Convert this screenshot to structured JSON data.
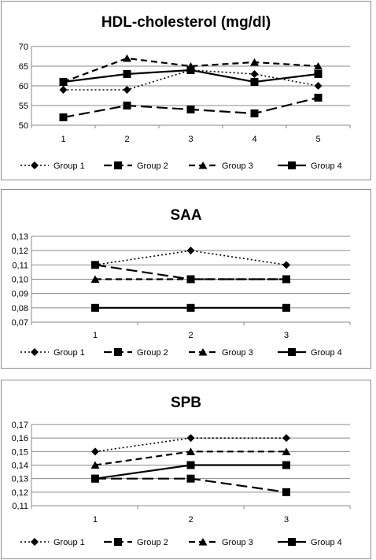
{
  "chart_data": [
    {
      "type": "line",
      "title": "HDL-cholesterol (mg/dl)",
      "categories": [
        "1",
        "2",
        "3",
        "4",
        "5"
      ],
      "ylim": [
        50,
        70
      ],
      "yticks": [
        "50",
        "55",
        "60",
        "65",
        "70"
      ],
      "ytick_values": [
        50,
        55,
        60,
        65,
        70
      ],
      "grid": true,
      "legend_position": "bottom",
      "series": [
        {
          "name": "Group 1",
          "style": "dotted",
          "marker": "diamond",
          "values": [
            59,
            59,
            64,
            63,
            60
          ]
        },
        {
          "name": "Group 2",
          "style": "long-dash",
          "marker": "square",
          "values": [
            52,
            55,
            54,
            53,
            57
          ]
        },
        {
          "name": "Group 3",
          "style": "dash",
          "marker": "triangle",
          "values": [
            61,
            67,
            65,
            66,
            65
          ]
        },
        {
          "name": "Group 4",
          "style": "solid",
          "marker": "square",
          "values": [
            61,
            63,
            64,
            61,
            63
          ]
        }
      ]
    },
    {
      "type": "line",
      "title": "SAA",
      "categories": [
        "1",
        "2",
        "3"
      ],
      "ylim": [
        0.07,
        0.13
      ],
      "yticks": [
        "0,07",
        "0,08",
        "0,09",
        "0,10",
        "0,11",
        "0,12",
        "0,13"
      ],
      "ytick_values": [
        0.07,
        0.08,
        0.09,
        0.1,
        0.11,
        0.12,
        0.13
      ],
      "grid": true,
      "legend_position": "bottom",
      "series": [
        {
          "name": "Group 1",
          "style": "dotted",
          "marker": "diamond",
          "values": [
            0.11,
            0.12,
            0.11
          ]
        },
        {
          "name": "Group 2",
          "style": "long-dash",
          "marker": "square",
          "values": [
            0.11,
            0.1,
            0.1
          ]
        },
        {
          "name": "Group 3",
          "style": "dash",
          "marker": "triangle",
          "values": [
            0.1,
            0.1,
            0.1
          ]
        },
        {
          "name": "Group 4",
          "style": "solid",
          "marker": "square",
          "values": [
            0.08,
            0.08,
            0.08
          ]
        }
      ]
    },
    {
      "type": "line",
      "title": "SPB",
      "categories": [
        "1",
        "2",
        "3"
      ],
      "ylim": [
        0.11,
        0.17
      ],
      "yticks": [
        "0,11",
        "0,12",
        "0,13",
        "0,14",
        "0,15",
        "0,16",
        "0,17"
      ],
      "ytick_values": [
        0.11,
        0.12,
        0.13,
        0.14,
        0.15,
        0.16,
        0.17
      ],
      "grid": true,
      "legend_position": "bottom",
      "series": [
        {
          "name": "Group 1",
          "style": "dotted",
          "marker": "diamond",
          "values": [
            0.15,
            0.16,
            0.16
          ]
        },
        {
          "name": "Group 2",
          "style": "long-dash",
          "marker": "square",
          "values": [
            0.13,
            0.13,
            0.12
          ]
        },
        {
          "name": "Group 3",
          "style": "dash",
          "marker": "triangle",
          "values": [
            0.14,
            0.15,
            0.15
          ]
        },
        {
          "name": "Group 4",
          "style": "solid",
          "marker": "square",
          "values": [
            0.13,
            0.14,
            0.14
          ]
        }
      ]
    }
  ]
}
